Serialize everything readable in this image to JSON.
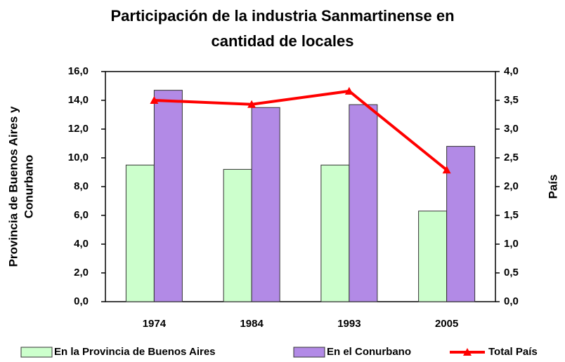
{
  "chart_data": {
    "type": "bar",
    "title": [
      "Participación de la industria Sanmartinense en",
      "cantidad de locales"
    ],
    "ylabel": [
      "Provincia de Buenos Aires y",
      "Conurbano"
    ],
    "y2label": "País",
    "categories": [
      "1974",
      "1984",
      "1993",
      "2005"
    ],
    "series": [
      {
        "name": "En la Provincia de Buenos Aires",
        "color": "#ccffcc",
        "values": [
          9.5,
          9.2,
          9.5,
          6.3
        ]
      },
      {
        "name": "En el Conurbano",
        "color": "#b28ae6",
        "values": [
          14.7,
          13.5,
          13.7,
          10.8
        ]
      },
      {
        "name": "Total País",
        "color": "#ff0000",
        "type": "line",
        "axis": "y2",
        "values": [
          3.5,
          3.43,
          3.66,
          2.29
        ]
      }
    ],
    "ylim": [
      0,
      16
    ],
    "yticks": [
      {
        "value": 0,
        "label": "0,0"
      },
      {
        "value": 2,
        "label": "2,0"
      },
      {
        "value": 4,
        "label": "4,0"
      },
      {
        "value": 6,
        "label": "6,0"
      },
      {
        "value": 8,
        "label": "8,0"
      },
      {
        "value": 10,
        "label": "10,0"
      },
      {
        "value": 12,
        "label": "12,0"
      },
      {
        "value": 14,
        "label": "14,0"
      },
      {
        "value": 16,
        "label": "16,0"
      }
    ],
    "y2lim": [
      0,
      4
    ],
    "y2ticks": [
      {
        "value": 0,
        "label": "0,0"
      },
      {
        "value": 0.5,
        "label": "0,5"
      },
      {
        "value": 1,
        "label": "1,0"
      },
      {
        "value": 1.5,
        "label": "1,5"
      },
      {
        "value": 2,
        "label": "2,0"
      },
      {
        "value": 2.5,
        "label": "2,5"
      },
      {
        "value": 3,
        "label": "3,0"
      },
      {
        "value": 3.5,
        "label": "3,5"
      },
      {
        "value": 4,
        "label": "4,0"
      }
    ],
    "grid": false,
    "legend": "bottom"
  }
}
